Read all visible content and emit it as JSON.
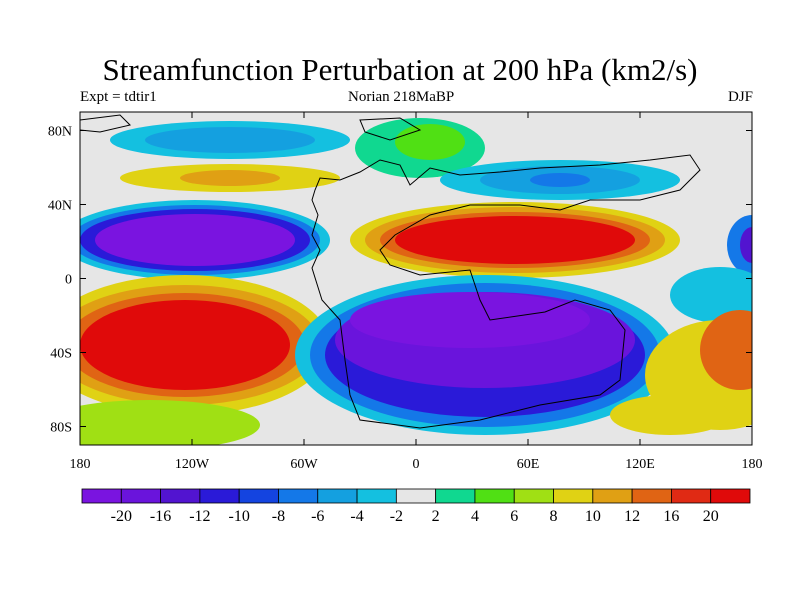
{
  "title": "Streamfunction Perturbation at 200 hPa (km2/s)",
  "subtitle": {
    "left": "Expt = tdtir1",
    "center": "Norian   218MaBP",
    "right": "DJF"
  },
  "map": {
    "lon_ticks": [
      "180",
      "120W",
      "60W",
      "0",
      "60E",
      "120E",
      "180"
    ],
    "lat_ticks": [
      "80N",
      "40N",
      "0",
      "40S",
      "80S"
    ],
    "lon_range": [
      -180,
      180
    ],
    "lat_range": [
      -90,
      90
    ]
  },
  "colorbar": {
    "labels": [
      "-20",
      "-16",
      "-12",
      "-10",
      "-8",
      "-6",
      "-4",
      "-2",
      "2",
      "4",
      "6",
      "8",
      "10",
      "12",
      "16",
      "20"
    ],
    "colors": [
      "#7a14e0",
      "#6a14dc",
      "#5214d0",
      "#2a1ad8",
      "#1444e0",
      "#1478e8",
      "#14a0e0",
      "#14c0e0",
      "#e6e6e6",
      "#10d890",
      "#50e014",
      "#a0e014",
      "#e0d214",
      "#e0a014",
      "#e06414",
      "#e02a14",
      "#e00a0a"
    ]
  },
  "chart_data": {
    "type": "heatmap",
    "title": "Streamfunction Perturbation at 200 hPa (km2/s)",
    "levels": [
      -20,
      -16,
      -12,
      -10,
      -8,
      -6,
      -4,
      -2,
      2,
      4,
      6,
      8,
      10,
      12,
      16,
      20
    ],
    "xlabel": "",
    "ylabel": "",
    "xlim": [
      -180,
      180
    ],
    "ylim": [
      -90,
      90
    ]
  }
}
